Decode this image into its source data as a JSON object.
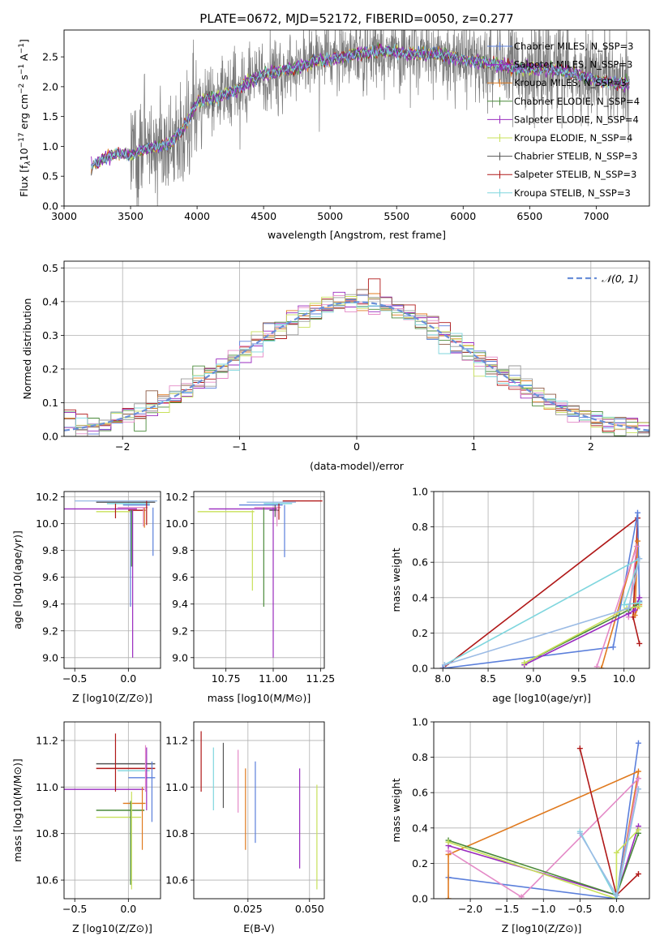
{
  "chart_data": [
    {
      "type": "line",
      "title": "PLATE=0672, MJD=52172, FIBERID=0050, z=0.277",
      "xlabel": "wavelength [Angstrom, rest frame]",
      "ylabel": "Flux [f_λ10^-17 erg cm^-2 s^-1 A^-1]",
      "xlim": [
        3000,
        7400
      ],
      "ylim": [
        0,
        2.95
      ],
      "xticks": [
        "3000",
        "3500",
        "4000",
        "4500",
        "5000",
        "5500",
        "6000",
        "6500",
        "7000"
      ],
      "yticks": [
        "0.0",
        "0.5",
        "1.0",
        "1.5",
        "2.0",
        "2.5"
      ],
      "grid": false,
      "legend_position": "top-right",
      "series": [
        {
          "name": "Chabrier MILES, N_SSP=3",
          "color": "#5b7fdb"
        },
        {
          "name": "Salpeter MILES, N_SSP=3",
          "color": "#9a2bbf"
        },
        {
          "name": "Kroupa MILES, N_SSP=3",
          "color": "#e07a1f"
        },
        {
          "name": "Chabrier ELODIE, N_SSP=4",
          "color": "#4a8a3a"
        },
        {
          "name": "Salpeter ELODIE, N_SSP=4",
          "color": "#9a2bbf"
        },
        {
          "name": "Kroupa ELODIE, N_SSP=4",
          "color": "#c8e05a"
        },
        {
          "name": "Chabrier STELIB, N_SSP=3",
          "color": "#555555"
        },
        {
          "name": "Salpeter STELIB, N_SSP=3",
          "color": "#b01818"
        },
        {
          "name": "Kroupa STELIB, N_SSP=3",
          "color": "#7fd6de"
        }
      ],
      "continuum_x": [
        3200,
        3300,
        3400,
        3500,
        3600,
        3700,
        3800,
        3900,
        4000,
        4100,
        4200,
        4300,
        4400,
        4500,
        4600,
        4700,
        4800,
        4900,
        5000,
        5200,
        5400,
        5600,
        5800,
        6000,
        6200,
        6400,
        6600,
        6800,
        7000,
        7200
      ],
      "continuum_y": [
        0.65,
        0.8,
        0.88,
        0.85,
        0.95,
        1.0,
        1.05,
        1.3,
        1.75,
        1.8,
        1.85,
        1.95,
        2.1,
        2.2,
        2.25,
        2.3,
        2.35,
        2.45,
        2.45,
        2.55,
        2.6,
        2.55,
        2.55,
        2.45,
        2.4,
        2.3,
        2.3,
        2.25,
        2.1,
        2.05
      ]
    },
    {
      "type": "line",
      "xlabel": "(data-model)/error",
      "ylabel": "Normed distribution",
      "xlim": [
        -2.5,
        2.5
      ],
      "ylim": [
        0,
        0.52
      ],
      "xticks": [
        "−2",
        "−1",
        "0",
        "1",
        "2"
      ],
      "yticks": [
        "0.0",
        "0.1",
        "0.2",
        "0.3",
        "0.4",
        "0.5"
      ],
      "grid": true,
      "legend": "𝒩(0, 1)",
      "legend_position": "top-right",
      "normal_mean": 0,
      "normal_sigma": 1
    },
    {
      "type": "scatter",
      "xlabel": "Z [log10(Z/Z⊙)]",
      "ylabel": "age  [log10(age/yr)]",
      "xlim": [
        -0.6,
        0.3
      ],
      "ylim": [
        8.92,
        10.24
      ],
      "xticks": [
        "−0.5",
        "0.0",
        "0.5"
      ],
      "yticks": [
        "9.0",
        "9.2",
        "9.4",
        "9.6",
        "9.8",
        "10.0",
        "10.2"
      ],
      "grid": true
    },
    {
      "type": "scatter",
      "xlabel": "mass [log10(M/M⊙)]",
      "ylabel": "",
      "xlim": [
        10.58,
        11.27
      ],
      "ylim": [
        8.92,
        10.24
      ],
      "xticks": [
        "10.75",
        "11.00",
        "11.25"
      ],
      "yticks": [
        "9.0",
        "9.2",
        "9.4",
        "9.6",
        "9.8",
        "10.0",
        "10.2"
      ],
      "grid": true
    },
    {
      "type": "line",
      "xlabel": "age  [log10(age/yr)]",
      "ylabel": "mass weight",
      "xlim": [
        7.9,
        10.28
      ],
      "ylim": [
        0,
        1.0
      ],
      "xticks": [
        "8.0",
        "8.5",
        "9.0",
        "9.5",
        "10.0"
      ],
      "yticks": [
        "0.0",
        "0.2",
        "0.4",
        "0.6",
        "0.8",
        "1.0"
      ],
      "grid": true
    },
    {
      "type": "scatter",
      "xlabel": "Z [log10(Z/Z⊙)]",
      "ylabel": "mass [log10(M/M⊙)]",
      "xlim": [
        -0.6,
        0.3
      ],
      "ylim": [
        10.52,
        11.28
      ],
      "xticks": [
        "−0.5",
        "0.0",
        "0.5"
      ],
      "yticks": [
        "10.6",
        "10.8",
        "11.0",
        "11.2"
      ],
      "grid": true
    },
    {
      "type": "scatter",
      "xlabel": "E(B-V)",
      "ylabel": "",
      "xlim": [
        0.003,
        0.056
      ],
      "ylim": [
        10.52,
        11.28
      ],
      "xticks": [
        "0.025",
        "0.050"
      ],
      "yticks": [
        "10.6",
        "10.8",
        "11.0",
        "11.2"
      ],
      "grid": true
    },
    {
      "type": "line",
      "xlabel": "Z [log10(Z/Z⊙)]",
      "ylabel": "mass weight",
      "xlim": [
        -2.5,
        0.45
      ],
      "ylim": [
        0,
        1.0
      ],
      "xticks": [
        "−2.0",
        "−1.5",
        "−1.0",
        "−0.5",
        "0.0"
      ],
      "yticks": [
        "0.0",
        "0.2",
        "0.4",
        "0.6",
        "0.8",
        "1.0"
      ],
      "grid": true
    }
  ]
}
